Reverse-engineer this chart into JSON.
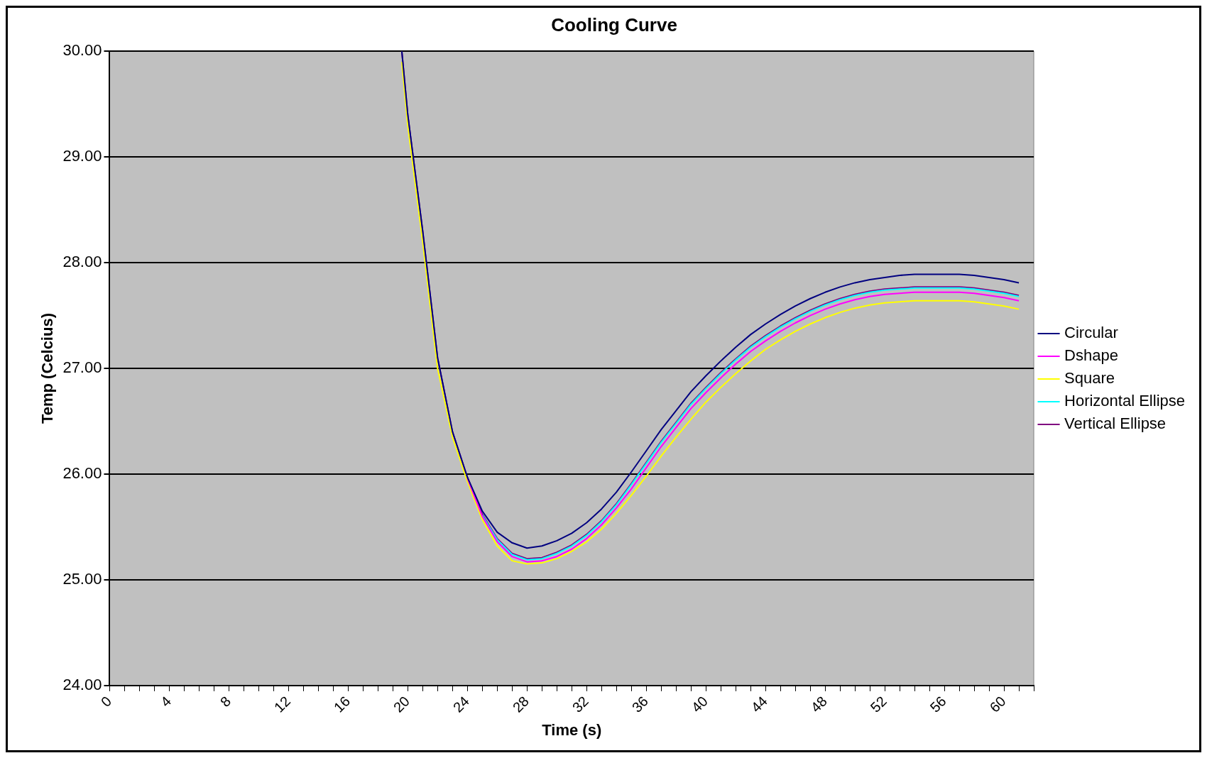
{
  "chart_data": {
    "type": "line",
    "title": "Cooling Curve",
    "xlabel": "Time (s)",
    "ylabel": "Temp (Celcius)",
    "x": [
      19.6,
      20,
      21,
      22,
      23,
      24,
      25,
      26,
      27,
      28,
      29,
      30,
      31,
      32,
      33,
      34,
      35,
      36,
      37,
      38,
      39,
      40,
      41,
      42,
      43,
      44,
      45,
      46,
      47,
      48,
      49,
      50,
      51,
      52,
      53,
      54,
      55,
      56,
      57,
      58,
      59,
      60,
      61
    ],
    "series": [
      {
        "name": "Circular",
        "color": "#000080",
        "values": [
          30.0,
          29.4,
          28.3,
          27.1,
          26.4,
          25.97,
          25.65,
          25.45,
          25.35,
          25.3,
          25.32,
          25.37,
          25.44,
          25.54,
          25.67,
          25.83,
          26.02,
          26.22,
          26.42,
          26.6,
          26.78,
          26.93,
          27.07,
          27.2,
          27.32,
          27.42,
          27.51,
          27.59,
          27.66,
          27.72,
          27.77,
          27.81,
          27.84,
          27.86,
          27.88,
          27.89,
          27.89,
          27.89,
          27.89,
          27.88,
          27.86,
          27.84,
          27.81
        ]
      },
      {
        "name": "Dshape",
        "color": "#ff00ff",
        "values": [
          null,
          null,
          null,
          null,
          null,
          25.96,
          25.6,
          25.36,
          25.22,
          25.17,
          25.18,
          25.22,
          25.29,
          25.39,
          25.52,
          25.68,
          25.86,
          26.06,
          26.26,
          26.44,
          26.62,
          26.77,
          26.91,
          27.04,
          27.16,
          27.26,
          27.35,
          27.43,
          27.5,
          27.56,
          27.61,
          27.65,
          27.68,
          27.7,
          27.71,
          27.72,
          27.72,
          27.72,
          27.72,
          27.71,
          27.69,
          27.67,
          27.64
        ]
      },
      {
        "name": "Square",
        "color": "#ffff00",
        "values": [
          29.9,
          29.3,
          28.2,
          27.0,
          26.35,
          25.93,
          25.57,
          25.32,
          25.18,
          25.15,
          25.16,
          25.2,
          25.27,
          25.36,
          25.48,
          25.63,
          25.8,
          25.98,
          26.17,
          26.35,
          26.52,
          26.68,
          26.82,
          26.95,
          27.07,
          27.18,
          27.27,
          27.35,
          27.42,
          27.48,
          27.53,
          27.57,
          27.6,
          27.62,
          27.63,
          27.64,
          27.64,
          27.64,
          27.64,
          27.63,
          27.61,
          27.59,
          27.56
        ]
      },
      {
        "name": "Horizontal Ellipse",
        "color": "#00ffff",
        "values": [
          null,
          null,
          null,
          null,
          null,
          null,
          25.61,
          25.38,
          25.24,
          25.19,
          25.2,
          25.25,
          25.32,
          25.42,
          25.55,
          25.71,
          25.9,
          26.1,
          26.3,
          26.48,
          26.66,
          26.81,
          26.95,
          27.08,
          27.2,
          27.3,
          27.39,
          27.47,
          27.54,
          27.6,
          27.65,
          27.69,
          27.72,
          27.74,
          27.75,
          27.76,
          27.76,
          27.76,
          27.76,
          27.75,
          27.73,
          27.71,
          27.68
        ]
      },
      {
        "name": "Vertical Ellipse",
        "color": "#800080",
        "values": [
          30.0,
          29.4,
          28.3,
          27.1,
          26.4,
          25.97,
          25.62,
          25.39,
          25.25,
          25.2,
          25.21,
          25.26,
          25.33,
          25.43,
          25.56,
          25.72,
          25.91,
          26.11,
          26.31,
          26.49,
          26.67,
          26.82,
          26.96,
          27.09,
          27.21,
          27.31,
          27.4,
          27.48,
          27.55,
          27.61,
          27.66,
          27.7,
          27.73,
          27.75,
          27.76,
          27.77,
          27.77,
          27.77,
          27.77,
          27.76,
          27.74,
          27.72,
          27.69
        ]
      }
    ],
    "xlim": [
      0,
      62
    ],
    "xticks": [
      0,
      {
        "value": 1,
        "label": null
      },
      {
        "value": 2,
        "label": null
      },
      {
        "value": 3,
        "label": null
      },
      4,
      {
        "value": 5,
        "label": null
      },
      {
        "value": 6,
        "label": null
      },
      {
        "value": 7,
        "label": null
      },
      8,
      {
        "value": 9,
        "label": null
      },
      {
        "value": 10,
        "label": null
      },
      {
        "value": 11,
        "label": null
      },
      12,
      {
        "value": 13,
        "label": null
      },
      {
        "value": 14,
        "label": null
      },
      {
        "value": 15,
        "label": null
      },
      16,
      {
        "value": 17,
        "label": null
      },
      {
        "value": 18,
        "label": null
      },
      {
        "value": 19,
        "label": null
      },
      20,
      {
        "value": 21,
        "label": null
      },
      {
        "value": 22,
        "label": null
      },
      {
        "value": 23,
        "label": null
      },
      24,
      {
        "value": 25,
        "label": null
      },
      {
        "value": 26,
        "label": null
      },
      {
        "value": 27,
        "label": null
      },
      28,
      {
        "value": 29,
        "label": null
      },
      {
        "value": 30,
        "label": null
      },
      {
        "value": 31,
        "label": null
      },
      32,
      {
        "value": 33,
        "label": null
      },
      {
        "value": 34,
        "label": null
      },
      {
        "value": 35,
        "label": null
      },
      36,
      {
        "value": 37,
        "label": null
      },
      {
        "value": 38,
        "label": null
      },
      {
        "value": 39,
        "label": null
      },
      40,
      {
        "value": 41,
        "label": null
      },
      {
        "value": 42,
        "label": null
      },
      {
        "value": 43,
        "label": null
      },
      44,
      {
        "value": 45,
        "label": null
      },
      {
        "value": 46,
        "label": null
      },
      {
        "value": 47,
        "label": null
      },
      48,
      {
        "value": 49,
        "label": null
      },
      {
        "value": 50,
        "label": null
      },
      {
        "value": 51,
        "label": null
      },
      52,
      {
        "value": 53,
        "label": null
      },
      {
        "value": 54,
        "label": null
      },
      {
        "value": 55,
        "label": null
      },
      56,
      {
        "value": 57,
        "label": null
      },
      {
        "value": 58,
        "label": null
      },
      {
        "value": 59,
        "label": null
      },
      60,
      {
        "value": 61,
        "label": null
      },
      {
        "value": 62,
        "label": null
      }
    ],
    "ylim": [
      24,
      30
    ],
    "yticks": [
      {
        "value": 24,
        "label": "24.00"
      },
      {
        "value": 25,
        "label": "25.00"
      },
      {
        "value": 26,
        "label": "26.00"
      },
      {
        "value": 27,
        "label": "27.00"
      },
      {
        "value": 28,
        "label": "28.00"
      },
      {
        "value": 29,
        "label": "29.00"
      },
      {
        "value": 30,
        "label": "30.00"
      }
    ],
    "grid": "y",
    "legend": "right",
    "marker": "none",
    "line_style": "solid"
  }
}
